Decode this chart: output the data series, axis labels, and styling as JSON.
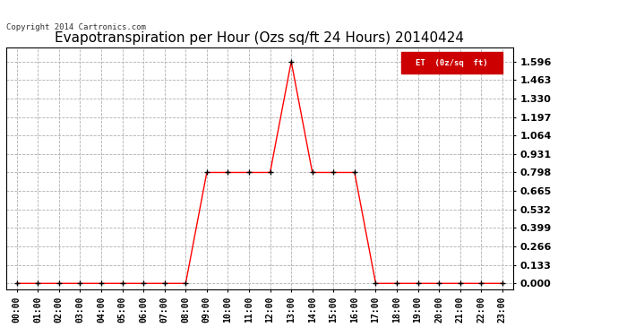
{
  "title": "Evapotranspiration per Hour (Ozs sq/ft 24 Hours) 20140424",
  "copyright": "Copyright 2014 Cartronics.com",
  "legend_label": "ET  (0z/sq  ft)",
  "hours": [
    0,
    1,
    2,
    3,
    4,
    5,
    6,
    7,
    8,
    9,
    10,
    11,
    12,
    13,
    14,
    15,
    16,
    17,
    18,
    19,
    20,
    21,
    22,
    23
  ],
  "values": [
    0.0,
    0.0,
    0.0,
    0.0,
    0.0,
    0.0,
    0.0,
    0.0,
    0.0,
    0.798,
    0.798,
    0.798,
    0.798,
    1.596,
    0.798,
    0.798,
    0.798,
    0.0,
    0.0,
    0.0,
    0.0,
    0.0,
    0.0,
    0.0
  ],
  "line_color": "#ff0000",
  "marker": "+",
  "marker_color": "#000000",
  "bg_color": "#ffffff",
  "grid_color": "#b0b0b0",
  "yticks": [
    0.0,
    0.133,
    0.266,
    0.399,
    0.532,
    0.665,
    0.798,
    0.931,
    1.064,
    1.197,
    1.33,
    1.463,
    1.596
  ],
  "ylim": [
    -0.04,
    1.7
  ],
  "title_fontsize": 11,
  "legend_bg": "#cc0000",
  "legend_text_color": "#ffffff",
  "axis_label_fontsize": 7,
  "ytick_fontsize": 8
}
